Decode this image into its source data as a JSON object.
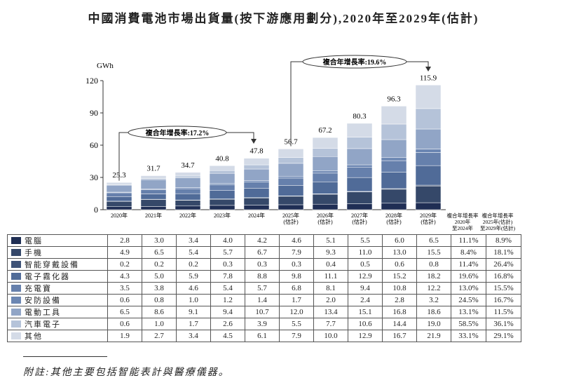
{
  "title": "中國消費電池市場出貨量(按下游應用劃分),2020年至2029年(估計)",
  "footnote": "附註:其他主要包括智能表計與醫療儀器。",
  "chart_data": {
    "type": "bar",
    "stacked": true,
    "title": "中國消費電池市場出貨量(按下游應用劃分),2020年至2029年(估計)",
    "ylabel": "GWh",
    "ylim": [
      0,
      120
    ],
    "yticks": [
      0,
      30,
      60,
      90,
      120
    ],
    "categories": [
      "2020年",
      "2021年",
      "2022年",
      "2023年",
      "2024年",
      "2025年\n(估計)",
      "2026年\n(估計)",
      "2027年\n(估計)",
      "2028年\n(估計)",
      "2029年\n(估計)"
    ],
    "totals": [
      "25.3",
      "31.7",
      "34.7",
      "40.8",
      "47.8",
      "56.7",
      "67.2",
      "80.3",
      "96.3",
      "115.9"
    ],
    "series": [
      {
        "name": "電腦",
        "color": "#1f2e54",
        "values": [
          2.8,
          3.0,
          3.4,
          4.0,
          4.2,
          4.6,
          5.1,
          5.5,
          6.0,
          6.5
        ],
        "cagr": [
          "11.1%",
          "8.9%"
        ]
      },
      {
        "name": "手機",
        "color": "#354869",
        "values": [
          4.9,
          6.5,
          5.4,
          5.7,
          6.7,
          7.9,
          9.3,
          11.0,
          13.0,
          15.5
        ],
        "cagr": [
          "8.4%",
          "18.1%"
        ]
      },
      {
        "name": "智能穿戴設備",
        "color": "#3e5277",
        "values": [
          0.2,
          0.2,
          0.2,
          0.3,
          0.3,
          0.3,
          0.4,
          0.5,
          0.6,
          0.8
        ],
        "cagr": [
          "11.4%",
          "26.4%"
        ]
      },
      {
        "name": "電子霧化器",
        "color": "#506b98",
        "values": [
          4.3,
          5.0,
          5.9,
          7.8,
          8.8,
          9.8,
          11.1,
          12.9,
          15.2,
          18.2
        ],
        "cagr": [
          "19.6%",
          "16.8%"
        ]
      },
      {
        "name": "充電寶",
        "color": "#6680ac",
        "values": [
          3.5,
          3.8,
          4.6,
          5.4,
          5.7,
          6.8,
          8.1,
          9.4,
          10.8,
          12.2
        ],
        "cagr": [
          "13.0%",
          "15.5%"
        ]
      },
      {
        "name": "安防設備",
        "color": "#6b86b2",
        "values": [
          0.6,
          0.8,
          1.0,
          1.2,
          1.4,
          1.7,
          2.0,
          2.4,
          2.8,
          3.2
        ],
        "cagr": [
          "24.5%",
          "16.7%"
        ]
      },
      {
        "name": "電動工具",
        "color": "#91a5c6",
        "values": [
          6.5,
          8.6,
          9.1,
          9.4,
          10.7,
          12.0,
          13.4,
          15.1,
          16.8,
          18.6
        ],
        "cagr": [
          "13.1%",
          "11.5%"
        ]
      },
      {
        "name": "汽車電子",
        "color": "#b5c3d9",
        "values": [
          0.6,
          1.0,
          1.7,
          2.6,
          3.9,
          5.5,
          7.7,
          10.6,
          14.4,
          19.0
        ],
        "cagr": [
          "58.5%",
          "36.1%"
        ]
      },
      {
        "name": "其他",
        "color": "#d4dbe7",
        "values": [
          1.9,
          2.7,
          3.4,
          4.5,
          6.1,
          7.9,
          10.0,
          12.9,
          16.7,
          21.9
        ],
        "cagr": [
          "33.1%",
          "29.1%"
        ]
      }
    ],
    "cagr_headers": [
      "複合年增長率\n2020年\n至2024年",
      "複合年增長率\n2025年(估計)\n至2029年(估計)"
    ],
    "annotations": [
      "複合年增長率:17.2%",
      "複合年增長率:19.6%"
    ]
  }
}
